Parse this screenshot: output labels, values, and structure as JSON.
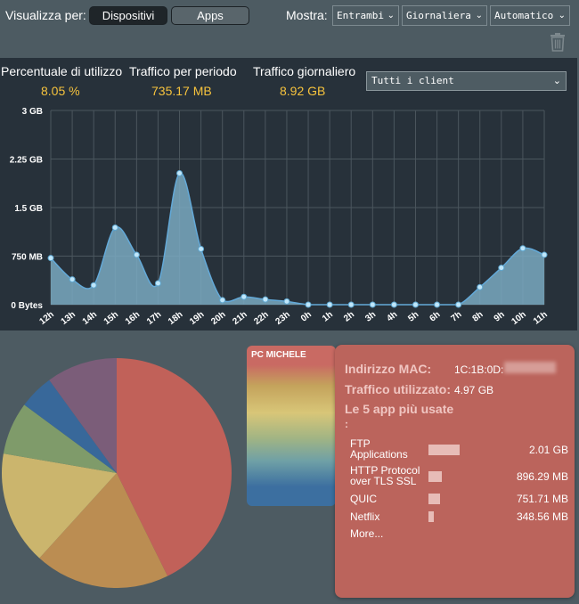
{
  "toolbar": {
    "view_by_label": "Visualizza per:",
    "tab_devices": "Dispositivi",
    "tab_apps": "Apps",
    "show_label": "Mostra:",
    "direction_value": "Entrambi",
    "period_value": "Giornaliera",
    "refresh_value": "Automatico",
    "trash_icon": "trash-icon"
  },
  "stats": {
    "usage_title": "Percentuale di utilizzo",
    "usage_value": "8.05 %",
    "period_title": "Traffico per periodo",
    "period_value": "735.17 MB",
    "daily_title": "Traffico giornaliero",
    "daily_value": "8.92 GB",
    "client_select": "Tutti i client"
  },
  "chart_data": {
    "type": "area",
    "x": [
      "12h",
      "13h",
      "14h",
      "15h",
      "16h",
      "17h",
      "18h",
      "19h",
      "20h",
      "21h",
      "22h",
      "23h",
      "0h",
      "1h",
      "2h",
      "3h",
      "4h",
      "5h",
      "6h",
      "7h",
      "8h",
      "9h",
      "10h",
      "11h"
    ],
    "values": [
      0.72,
      0.39,
      0.3,
      1.19,
      0.77,
      0.33,
      2.03,
      0.86,
      0.07,
      0.12,
      0.08,
      0.05,
      0.0,
      0.0,
      0.0,
      0.0,
      0.0,
      0.0,
      0.0,
      0.0,
      0.27,
      0.57,
      0.87,
      0.77
    ],
    "ylim": [
      0,
      3
    ],
    "ytick_values": [
      0,
      0.75,
      1.5,
      2.25,
      3
    ],
    "ytick_labels": [
      "0 Bytes",
      "750 MB",
      "1.5 GB",
      "2.25 GB",
      "3 GB"
    ],
    "grid": true,
    "colors": {
      "fill": "#7aa9c1",
      "line": "#63a9d8",
      "point": "#bfe6fa",
      "grid": "#4b565e"
    }
  },
  "pie": {
    "slices": [
      {
        "value": 2.01,
        "color": "#c16159"
      },
      {
        "value": 0.896,
        "color": "#bb8d52"
      },
      {
        "value": 0.752,
        "color": "#cbb56d"
      },
      {
        "value": 0.349,
        "color": "#7f9b6a"
      },
      {
        "value": 0.23,
        "color": "#38689a"
      },
      {
        "value": 0.47,
        "color": "#7b5d79"
      }
    ]
  },
  "client": {
    "name": "PC MICHELE",
    "mac_label": "Indirizzo MAC:",
    "mac_value": "1C:1B:0D:",
    "traffic_label": "Traffico utilizzato:",
    "traffic_value": "4.97 GB",
    "top_apps_label": "Le 5 app più usate",
    "top_apps_colon": ":",
    "apps": [
      {
        "name": "FTP Applications",
        "value": "2.01 GB",
        "fraction": 1.0
      },
      {
        "name": "HTTP Protocol over TLS SSL",
        "value": "896.29 MB",
        "fraction": 0.44
      },
      {
        "name": "QUIC",
        "value": "751.71 MB",
        "fraction": 0.37
      },
      {
        "name": "Netflix",
        "value": "348.56 MB",
        "fraction": 0.17
      }
    ],
    "more": "More..."
  }
}
